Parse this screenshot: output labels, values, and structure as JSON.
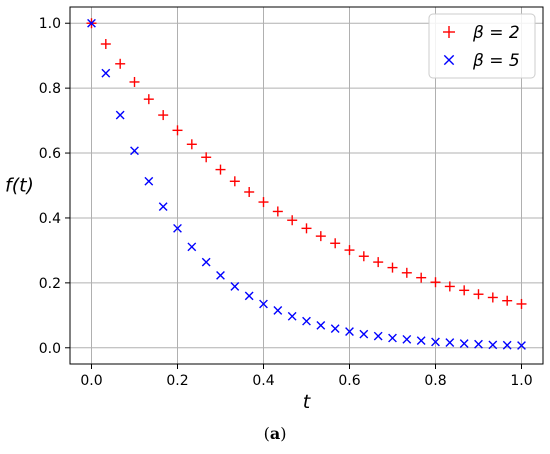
{
  "caption": {
    "open": "(",
    "letter": "a",
    "close": ")"
  },
  "colors": {
    "beta2": "#ff0000",
    "beta5": "#0000ff",
    "grid": "#b0b0b0",
    "legend_border": "#cccccc"
  },
  "chart_data": {
    "type": "scatter",
    "title": "",
    "xlabel": "t",
    "ylabel": "f(t)",
    "xlim": [
      -0.05,
      1.05
    ],
    "ylim": [
      -0.05,
      1.05
    ],
    "xticks": [
      0.0,
      0.2,
      0.4,
      0.6,
      0.8,
      1.0
    ],
    "xtick_labels": [
      "0.0",
      "0.2",
      "0.4",
      "0.6",
      "0.8",
      "1.0"
    ],
    "yticks": [
      0.0,
      0.2,
      0.4,
      0.6,
      0.8,
      1.0
    ],
    "ytick_labels": [
      "0.0",
      "0.2",
      "0.4",
      "0.6",
      "0.8",
      "1.0"
    ],
    "grid": true,
    "legend_position": "top-right",
    "x": [
      0.0,
      0.0333,
      0.0667,
      0.1,
      0.1333,
      0.1667,
      0.2,
      0.2333,
      0.2667,
      0.3,
      0.3333,
      0.3667,
      0.4,
      0.4333,
      0.4667,
      0.5,
      0.5333,
      0.5667,
      0.6,
      0.6333,
      0.6667,
      0.7,
      0.7333,
      0.7667,
      0.8,
      0.8333,
      0.8667,
      0.9,
      0.9333,
      0.9667,
      1.0
    ],
    "series": [
      {
        "name": "β = 2",
        "marker": "plus",
        "color": "#ff0000",
        "values": [
          1.0,
          0.936,
          0.875,
          0.819,
          0.766,
          0.717,
          0.67,
          0.627,
          0.587,
          0.549,
          0.513,
          0.48,
          0.449,
          0.42,
          0.393,
          0.368,
          0.344,
          0.322,
          0.301,
          0.282,
          0.264,
          0.247,
          0.231,
          0.216,
          0.202,
          0.189,
          0.177,
          0.165,
          0.155,
          0.145,
          0.135
        ]
      },
      {
        "name": "β = 5",
        "marker": "x",
        "color": "#0000ff",
        "values": [
          1.0,
          0.846,
          0.717,
          0.607,
          0.513,
          0.435,
          0.368,
          0.311,
          0.264,
          0.223,
          0.189,
          0.16,
          0.135,
          0.115,
          0.097,
          0.082,
          0.069,
          0.059,
          0.05,
          0.042,
          0.036,
          0.03,
          0.026,
          0.022,
          0.018,
          0.016,
          0.013,
          0.011,
          0.009,
          0.008,
          0.007
        ]
      }
    ]
  }
}
